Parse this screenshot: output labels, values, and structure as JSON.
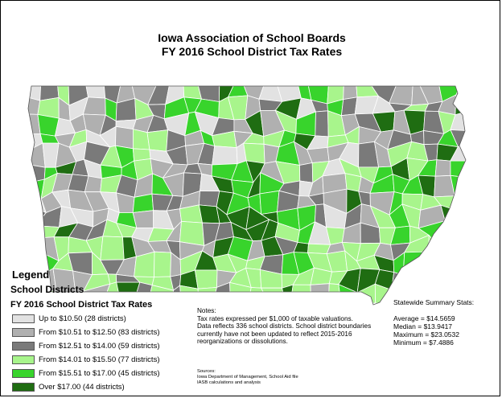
{
  "title_line1": "Iowa Association of School Boards",
  "title_line2": "FY 2016 School District Tax Rates",
  "legend": {
    "title": "Legend",
    "layer": "School Districts",
    "field": "FY 2016 School District Tax Rates",
    "classes": [
      {
        "label": "Up to $10.50 (28 districts)",
        "color": "#e2e2e2"
      },
      {
        "label": "From $10.51 to $12.50 (83 districts)",
        "color": "#b0b0b0"
      },
      {
        "label": "From $12.51 to $14.00 (59 districts)",
        "color": "#7a7a7a"
      },
      {
        "label": "From $14.01 to $15.50 (77 districts)",
        "color": "#a8f58c"
      },
      {
        "label": "From $15.51 to $17.00 (45 districts)",
        "color": "#38d42c"
      },
      {
        "label": "Over $17.00 (44 districts)",
        "color": "#1f6d12"
      }
    ]
  },
  "notes": {
    "heading": "Notes:",
    "lines": [
      "Tax rates expressed per $1,000 of taxable valuations.",
      "Data reflects 336 school districts.  School district boundaries",
      "currently have not been updated to reflect 2015-2016",
      "reorganizations or dissolutions."
    ]
  },
  "sources": {
    "heading": "Sources:",
    "lines": [
      "Iowa Department of Management, School Aid file",
      "IASB calculations and analysis"
    ]
  },
  "stats": {
    "heading": "Statewide Summary Stats:",
    "average": "Average = $14.5659",
    "median": "Median = $13.9417",
    "maximum": "Maximum = $23.0532",
    "minimum": "Minimum = $7.4886"
  }
}
